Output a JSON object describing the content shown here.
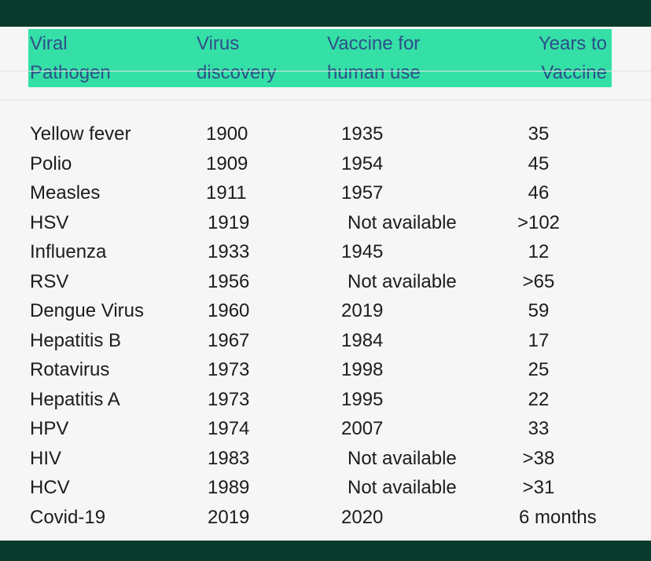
{
  "table": {
    "headers": [
      "Viral\nPathogen",
      "Virus\ndiscovery",
      "Vaccine for\nhuman use",
      "Years to\nVaccine"
    ],
    "rows": [
      {
        "pathogen": "Yellow fever",
        "discovery": "1900",
        "vaccine": "1935",
        "years": "35"
      },
      {
        "pathogen": "Polio",
        "discovery": "1909",
        "vaccine": "1954",
        "years": "45"
      },
      {
        "pathogen": "Measles",
        "discovery": "1911",
        "vaccine": "1957",
        "years": "46"
      },
      {
        "pathogen": "HSV",
        "discovery": "1919",
        "vaccine": "Not available",
        "years": ">102"
      },
      {
        "pathogen": "Influenza",
        "discovery": "1933",
        "vaccine": "1945",
        "years": "12"
      },
      {
        "pathogen": "RSV",
        "discovery": "1956",
        "vaccine": "Not available",
        "years": ">65"
      },
      {
        "pathogen": "Dengue Virus",
        "discovery": "1960",
        "vaccine": "2019",
        "years": "59"
      },
      {
        "pathogen": "Hepatitis B",
        "discovery": "1967",
        "vaccine": "1984",
        "years": "17"
      },
      {
        "pathogen": "Rotavirus",
        "discovery": "1973",
        "vaccine": "1998",
        "years": "25"
      },
      {
        "pathogen": "Hepatitis A",
        "discovery": "1973",
        "vaccine": "1995",
        "years": "22"
      },
      {
        "pathogen": "HPV",
        "discovery": "1974",
        "vaccine": "2007",
        "years": "33"
      },
      {
        "pathogen": "HIV",
        "discovery": "1983",
        "vaccine": "Not available",
        "years": ">38"
      },
      {
        "pathogen": "HCV",
        "discovery": "1989",
        "vaccine": "Not available",
        "years": ">31"
      },
      {
        "pathogen": "Covid-19",
        "discovery": "2019",
        "vaccine": "2020",
        "years": "6 months"
      }
    ]
  },
  "colors": {
    "frame": "#0a3a2c",
    "header_band": "#34e0a6",
    "header_text": "#2f4f8a",
    "paper": "#f6f6f6",
    "body_text": "#1c1c1c"
  }
}
